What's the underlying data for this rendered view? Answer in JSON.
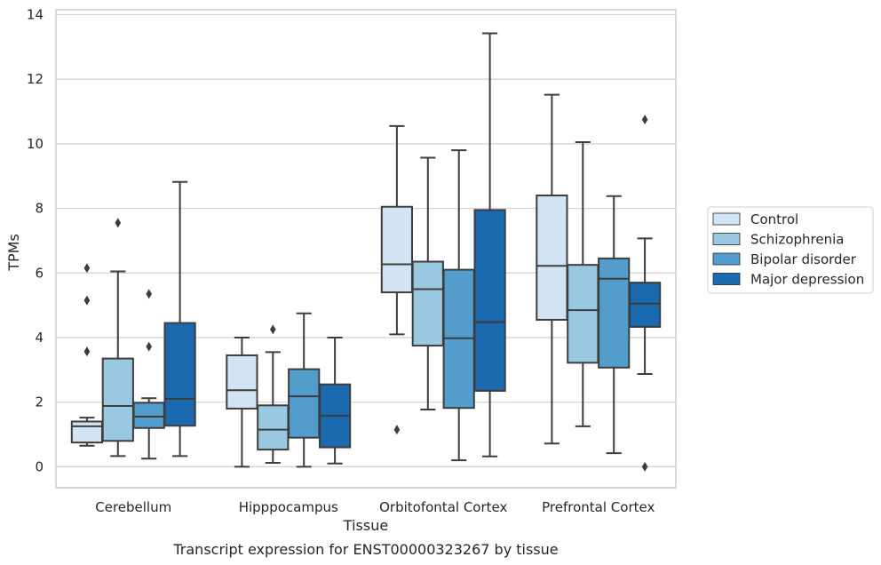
{
  "chart_data": {
    "type": "box",
    "title": "",
    "caption": "Transcript expression for ENST00000323267 by tissue",
    "xlabel": "Tissue",
    "ylabel": "TPMs",
    "ylim": [
      -0.65,
      14.15
    ],
    "yticks": [
      0,
      2,
      4,
      6,
      8,
      10,
      12,
      14
    ],
    "grid": "horizontal",
    "legend_position": "right",
    "categories": [
      "Cerebellum",
      "Hipppocampus",
      "Orbitofontal Cortex",
      "Prefrontal Cortex"
    ],
    "series": [
      {
        "name": "Control",
        "color": "#d2e3f3",
        "boxes": [
          {
            "whislo": 0.65,
            "q1": 0.75,
            "med": 1.25,
            "q3": 1.4,
            "whishi": 1.52,
            "fliers": [
              3.57,
              5.15,
              6.15
            ]
          },
          {
            "whislo": 0.0,
            "q1": 1.8,
            "med": 2.37,
            "q3": 3.45,
            "whishi": 4.0,
            "fliers": []
          },
          {
            "whislo": 4.1,
            "q1": 5.4,
            "med": 6.27,
            "q3": 8.05,
            "whishi": 10.55,
            "fliers": [
              1.15
            ]
          },
          {
            "whislo": 0.72,
            "q1": 4.55,
            "med": 6.22,
            "q3": 8.4,
            "whishi": 11.52,
            "fliers": []
          }
        ]
      },
      {
        "name": "Schizophrenia",
        "color": "#9ac8e0",
        "boxes": [
          {
            "whislo": 0.33,
            "q1": 0.8,
            "med": 1.88,
            "q3": 3.35,
            "whishi": 6.05,
            "fliers": [
              7.55
            ]
          },
          {
            "whislo": 0.12,
            "q1": 0.53,
            "med": 1.15,
            "q3": 1.9,
            "whishi": 3.55,
            "fliers": [
              4.25
            ]
          },
          {
            "whislo": 1.77,
            "q1": 3.75,
            "med": 5.5,
            "q3": 6.35,
            "whishi": 9.57,
            "fliers": []
          },
          {
            "whislo": 1.25,
            "q1": 3.22,
            "med": 4.85,
            "q3": 6.25,
            "whishi": 10.05,
            "fliers": []
          }
        ]
      },
      {
        "name": "Bipolar disorder",
        "color": "#529dcc",
        "boxes": [
          {
            "whislo": 0.25,
            "q1": 1.2,
            "med": 1.55,
            "q3": 1.98,
            "whishi": 2.12,
            "fliers": [
              3.72,
              5.35
            ]
          },
          {
            "whislo": 0.0,
            "q1": 0.9,
            "med": 2.18,
            "q3": 3.02,
            "whishi": 4.75,
            "fliers": []
          },
          {
            "whislo": 0.2,
            "q1": 1.82,
            "med": 3.98,
            "q3": 6.1,
            "whishi": 9.8,
            "fliers": []
          },
          {
            "whislo": 0.42,
            "q1": 3.07,
            "med": 5.82,
            "q3": 6.45,
            "whishi": 8.38,
            "fliers": []
          }
        ]
      },
      {
        "name": "Major depression",
        "color": "#1b69af",
        "boxes": [
          {
            "whislo": 0.33,
            "q1": 1.27,
            "med": 2.1,
            "q3": 4.45,
            "whishi": 8.82,
            "fliers": []
          },
          {
            "whislo": 0.1,
            "q1": 0.6,
            "med": 1.58,
            "q3": 2.55,
            "whishi": 4.0,
            "fliers": []
          },
          {
            "whislo": 0.32,
            "q1": 2.35,
            "med": 4.48,
            "q3": 7.95,
            "whishi": 13.42,
            "fliers": []
          },
          {
            "whislo": 2.87,
            "q1": 4.33,
            "med": 5.05,
            "q3": 5.7,
            "whishi": 7.07,
            "fliers": [
              0.0,
              10.75
            ]
          }
        ]
      }
    ]
  }
}
